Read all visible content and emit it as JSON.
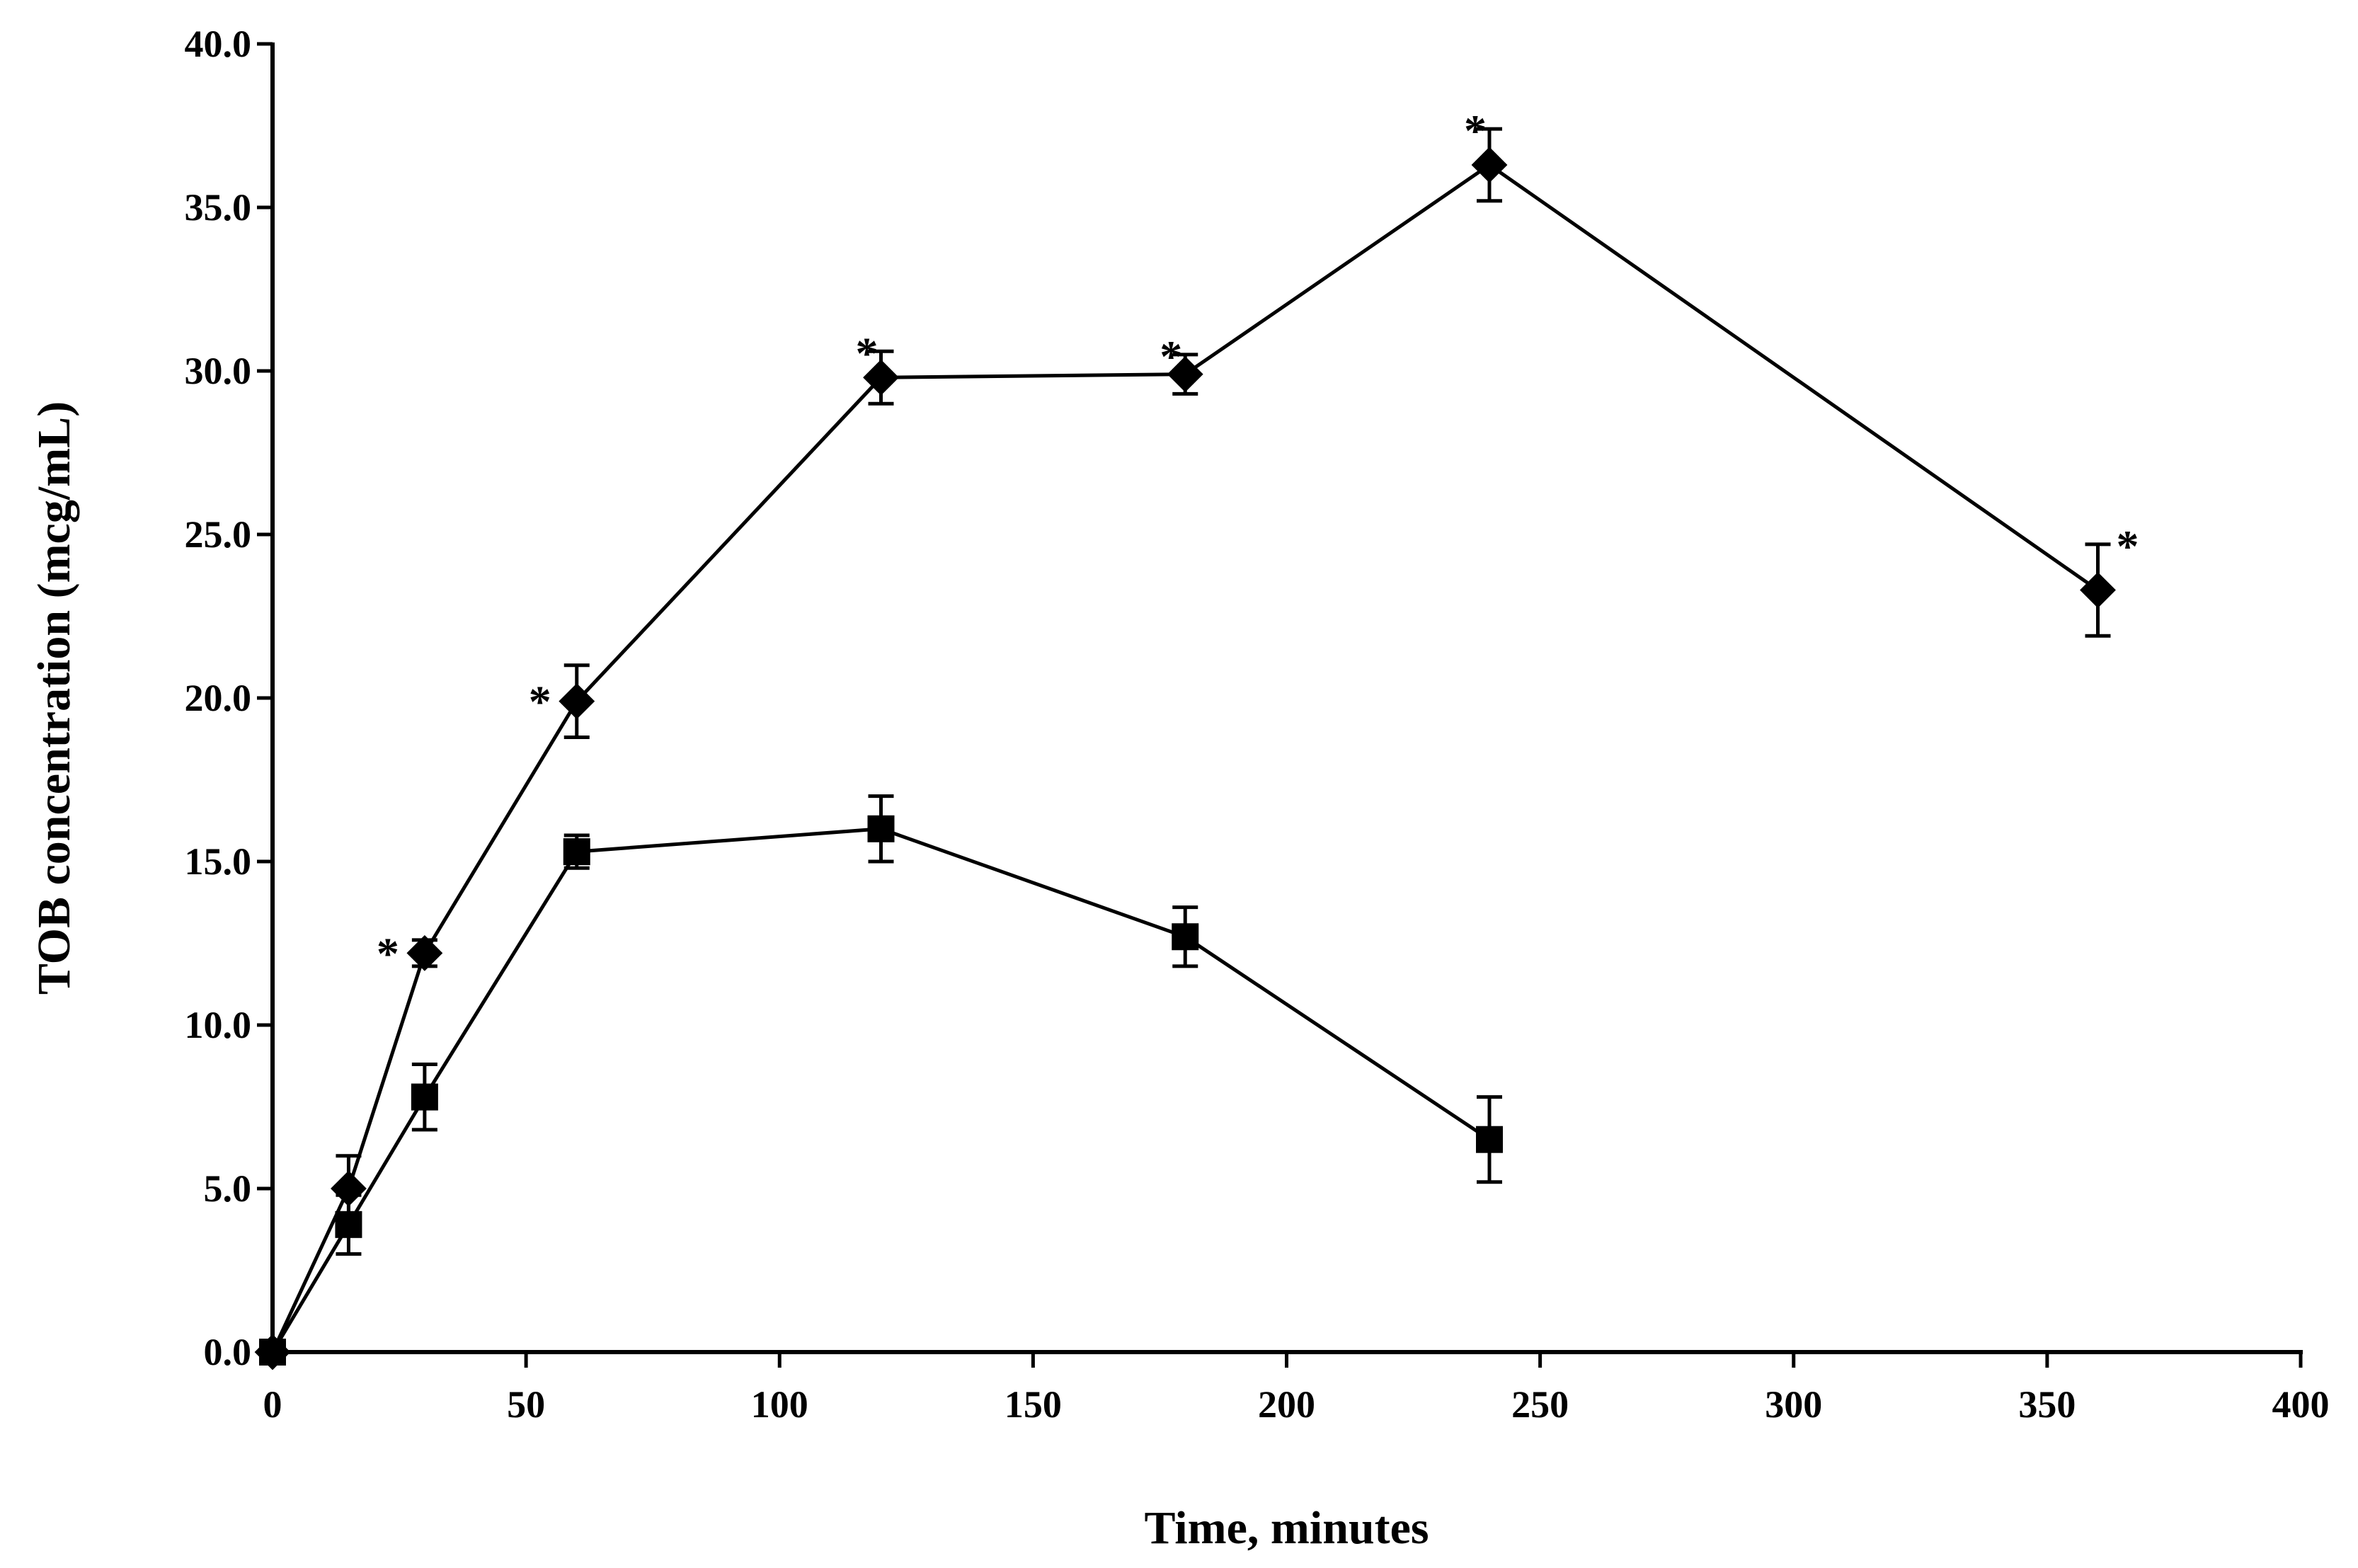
{
  "chart_data": {
    "type": "line",
    "title": "",
    "xlabel": "Time, minutes",
    "ylabel": "TOB concentration (mcg/mL)",
    "xlim": [
      0,
      400
    ],
    "ylim": [
      0,
      40
    ],
    "x_ticks": [
      0,
      50,
      100,
      150,
      200,
      250,
      300,
      350,
      400
    ],
    "x_tick_labels": [
      "0",
      "50",
      "100",
      "150",
      "200",
      "250",
      "300",
      "350",
      "400"
    ],
    "y_ticks": [
      0,
      5,
      10,
      15,
      20,
      25,
      30,
      35,
      40
    ],
    "y_tick_labels": [
      "0.0",
      "5.0",
      "10.0",
      "15.0",
      "20.0",
      "25.0",
      "30.0",
      "35.0",
      "40.0"
    ],
    "grid": false,
    "significance_marker": "*",
    "series": [
      {
        "name": "diamond series",
        "marker": "diamond",
        "color": "#000000",
        "x": [
          0,
          15,
          30,
          60,
          120,
          180,
          240,
          360
        ],
        "values": [
          0.0,
          5.0,
          12.2,
          19.9,
          29.8,
          29.9,
          36.3,
          23.3
        ],
        "errors": [
          0.0,
          1.0,
          0.4,
          1.1,
          0.8,
          0.6,
          1.1,
          1.4
        ],
        "significant": [
          false,
          false,
          true,
          true,
          true,
          true,
          true,
          true
        ]
      },
      {
        "name": "square series",
        "marker": "square",
        "color": "#000000",
        "x": [
          0,
          15,
          30,
          60,
          120,
          180,
          240
        ],
        "values": [
          0.0,
          3.9,
          7.8,
          15.3,
          16.0,
          12.7,
          6.5
        ],
        "errors": [
          0.0,
          0.9,
          1.0,
          0.5,
          1.0,
          0.9,
          1.3
        ],
        "significant": [
          false,
          false,
          false,
          false,
          false,
          false,
          false
        ]
      }
    ]
  }
}
